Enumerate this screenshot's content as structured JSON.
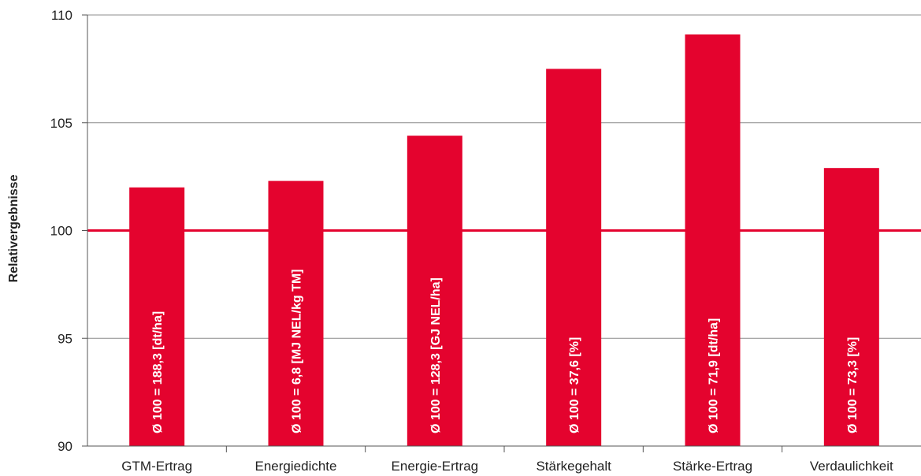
{
  "chart_data": {
    "type": "bar",
    "title": "",
    "xlabel": "",
    "ylabel": "Relativergebnisse",
    "ylim": [
      90,
      110
    ],
    "yticks": [
      90,
      95,
      100,
      105,
      110
    ],
    "grid": true,
    "reference_line": 100,
    "categories": [
      "GTM-Ertrag",
      "Energiedichte",
      "Energie-Ertrag",
      "Stärkegehalt",
      "Stärke-Ertrag",
      "Verdaulichkeit"
    ],
    "values": [
      102.0,
      102.3,
      104.4,
      107.5,
      109.1,
      102.9
    ],
    "bar_labels": [
      "Ø 100 = 188,3 [dt/ha]",
      "Ø 100 = 6,8 [MJ NEL/kg TM]",
      "Ø 100 = 128,3 [GJ NEL/ha]",
      "Ø 100 = 37,6 [%]",
      "Ø 100 = 71,9 [dt/ha]",
      "Ø 100 = 73,3 [%]"
    ],
    "colors": {
      "bar": "#e4032e",
      "reference_line": "#e4032e",
      "grid": "#8c8c8c",
      "axis": "#555555"
    }
  }
}
